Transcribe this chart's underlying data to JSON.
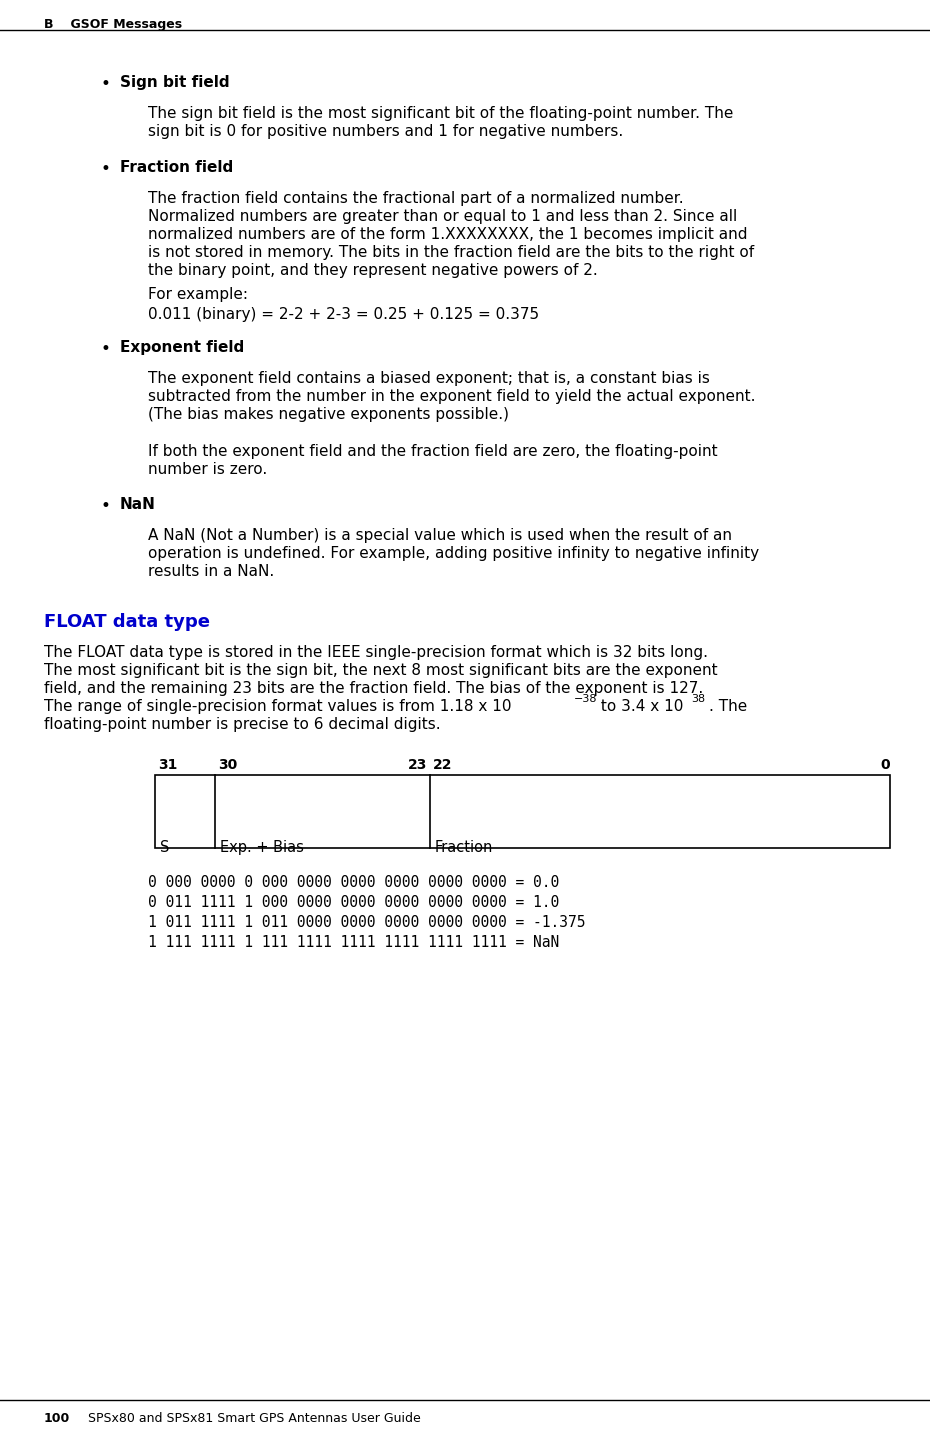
{
  "bg_color": "#ffffff",
  "header_text_b": "B",
  "header_text_rest": "    GSOF Messages",
  "footer_bold": "100",
  "footer_rest": "    SPSx80 and SPSx81 Smart GPS Antennas User Guide",
  "section_title": "FLOAT data type",
  "section_title_color": "#0000cc",
  "binary_lines": [
    "0 000 0000 0 000 0000 0000 0000 0000 0000 = 0.0",
    "0 011 1111 1 000 0000 0000 0000 0000 0000 = 1.0",
    "1 011 1111 1 011 0000 0000 0000 0000 0000 = -1.375",
    "1 111 1111 1 111 1111 1111 1111 1111 1111 = NaN"
  ]
}
